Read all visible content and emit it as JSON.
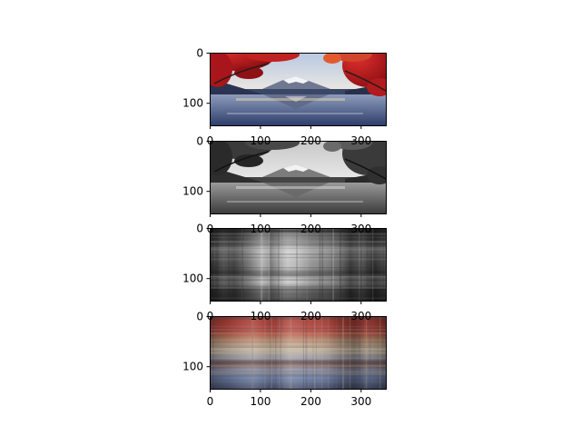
{
  "chart_data": [
    {
      "type": "image",
      "content": "color photograph: Mount Fuji behind a lake, red autumn maple leaves framing the top, reflection in the water",
      "xlim": [
        0,
        350
      ],
      "ylim": [
        145,
        0
      ],
      "xticks": [
        0,
        100,
        200,
        300
      ],
      "yticks": [
        0,
        100
      ],
      "colors": {
        "sky": "#c9d6e8",
        "leaves": "#b8161c",
        "mountain": "#6d7488",
        "water": "#4a5f8f",
        "dark": "#1d2436"
      }
    },
    {
      "type": "image",
      "content": "grayscale version of the same photograph",
      "xlim": [
        0,
        350
      ],
      "ylim": [
        145,
        0
      ],
      "xticks": [
        0,
        100,
        200,
        300
      ],
      "yticks": [
        0,
        100
      ],
      "colors": {
        "sky": "#d2d2d2",
        "trees": "#303030",
        "water": "#6a6a6a"
      }
    },
    {
      "type": "image",
      "content": "grayscale blocky low-rank reconstruction with vertical and horizontal streak texture",
      "xlim": [
        0,
        350
      ],
      "ylim": [
        145,
        0
      ],
      "xticks": [
        0,
        100,
        200,
        300
      ],
      "yticks": [
        0,
        100
      ],
      "colors": {
        "light": "#d8d8d8",
        "dark": "#202020"
      }
    },
    {
      "type": "image",
      "content": "color blocky low-rank reconstruction: red band at the top, tan/blue middle, bluish-gray bottom",
      "xlim": [
        0,
        350
      ],
      "ylim": [
        145,
        0
      ],
      "xticks": [
        0,
        100,
        200,
        300
      ],
      "yticks": [
        0,
        100
      ],
      "colors": {
        "red": "#b23a35",
        "tan": "#c8b49a",
        "blue": "#6f86a8",
        "dark": "#3c3f55"
      }
    }
  ]
}
